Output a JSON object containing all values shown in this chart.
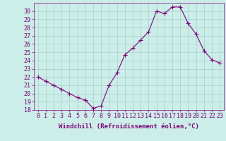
{
  "x": [
    0,
    1,
    2,
    3,
    4,
    5,
    6,
    7,
    8,
    9,
    10,
    11,
    12,
    13,
    14,
    15,
    16,
    17,
    18,
    19,
    20,
    21,
    22,
    23
  ],
  "y": [
    22,
    21.5,
    21,
    20.5,
    20,
    19.5,
    19.2,
    18.2,
    18.5,
    21,
    22.5,
    24.7,
    25.5,
    26.5,
    27.5,
    30,
    29.7,
    30.5,
    30.5,
    28.5,
    27.2,
    25.2,
    24.1,
    23.7
  ],
  "line_color": "#800080",
  "marker": "+",
  "marker_color": "#800080",
  "bg_color": "#cceee8",
  "grid_color": "#aacccc",
  "xlabel": "Windchill (Refroidissement éolien,°C)",
  "ylim": [
    18,
    31
  ],
  "xlim": [
    -0.5,
    23.5
  ],
  "yticks": [
    18,
    19,
    20,
    21,
    22,
    23,
    24,
    25,
    26,
    27,
    28,
    29,
    30
  ],
  "xticks": [
    0,
    1,
    2,
    3,
    4,
    5,
    6,
    7,
    8,
    9,
    10,
    11,
    12,
    13,
    14,
    15,
    16,
    17,
    18,
    19,
    20,
    21,
    22,
    23
  ],
  "label_color": "#800080",
  "tick_color": "#800080",
  "font_size_xlabel": 6.5,
  "font_size_ticks": 6,
  "line_width": 0.8,
  "marker_size": 4
}
